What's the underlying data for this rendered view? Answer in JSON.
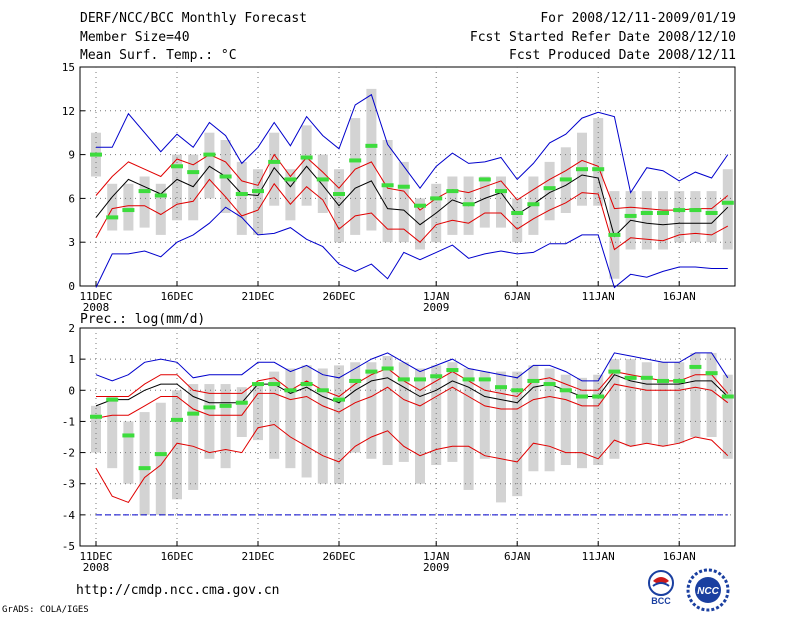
{
  "header": {
    "title": "DERF/NCC/BCC Monthly Forecast",
    "member_size": "Member Size=40",
    "variable": "Mean Surf. Temp.: °C",
    "period": "For 2008/12/11-2009/01/19",
    "fcst_started": "Fcst Started Refer Date 2008/12/10",
    "fcst_produced": "Fcst Produced Date 2008/12/11"
  },
  "footer": {
    "url": "http://cmdp.ncc.cma.gov.cn",
    "credit": "GrADS: COLA/IGES",
    "logo_left_text": "BCC",
    "logo_right_text": "NCC"
  },
  "colors": {
    "box": "#d3d3d3",
    "ensemble_mean": "#000000",
    "spread": "#e00000",
    "extremes": "#0000cc",
    "marker": "#3ddc3d"
  },
  "chart_data": [
    {
      "type": "line",
      "title": "",
      "ylabel": "",
      "ylim": [
        0,
        15
      ],
      "yticks": [
        0,
        3,
        6,
        9,
        12,
        15
      ],
      "xticks": [
        {
          "day": 0,
          "label": "11DEC",
          "sub": "2008"
        },
        {
          "day": 5,
          "label": "16DEC",
          "sub": ""
        },
        {
          "day": 10,
          "label": "21DEC",
          "sub": ""
        },
        {
          "day": 15,
          "label": "26DEC",
          "sub": ""
        },
        {
          "day": 21,
          "label": "1JAN",
          "sub": "2009"
        },
        {
          "day": 26,
          "label": "6JAN",
          "sub": ""
        },
        {
          "day": 31,
          "label": "11JAN",
          "sub": ""
        },
        {
          "day": 36,
          "label": "16JAN",
          "sub": ""
        }
      ],
      "grid": true,
      "days": 40,
      "series": [
        {
          "name": "max",
          "color": "#0000cc",
          "values": [
            9.5,
            9.5,
            11.8,
            10.5,
            9.2,
            10.4,
            9.5,
            11.2,
            10.3,
            8.4,
            9.5,
            11.2,
            9.6,
            11.6,
            10.3,
            9.4,
            12.4,
            13.1,
            9.7,
            8.2,
            6.7,
            8.2,
            9.1,
            8.4,
            8.5,
            8.8,
            7.3,
            8.4,
            9.8,
            10.4,
            11.5,
            11.9,
            11.6,
            6.4,
            8.1,
            7.9,
            7.2,
            7.8,
            7.4,
            9.0
          ]
        },
        {
          "name": "p75",
          "color": "#e00000",
          "values": [
            6.2,
            7.5,
            8.5,
            8.0,
            7.5,
            8.7,
            8.3,
            9.0,
            8.5,
            7.2,
            6.9,
            9.0,
            7.5,
            8.8,
            7.8,
            6.7,
            8.0,
            8.5,
            6.7,
            6.5,
            5.2,
            6.0,
            6.6,
            6.4,
            6.8,
            7.2,
            5.9,
            6.6,
            7.3,
            7.9,
            8.6,
            8.2,
            5.3,
            5.4,
            5.3,
            5.2,
            5.2,
            5.3,
            5.3,
            6.2
          ]
        },
        {
          "name": "mean",
          "color": "#000000",
          "values": [
            4.7,
            6.1,
            7.3,
            6.8,
            6.3,
            7.3,
            6.8,
            8.2,
            7.5,
            6.3,
            6.2,
            8.1,
            6.8,
            8.2,
            6.9,
            5.5,
            6.7,
            7.2,
            5.3,
            5.2,
            4.2,
            5.0,
            5.9,
            5.5,
            6.0,
            6.4,
            4.9,
            5.6,
            6.4,
            6.9,
            7.6,
            7.4,
            3.4,
            4.5,
            4.3,
            4.2,
            4.3,
            4.3,
            4.3,
            5.4
          ]
        },
        {
          "name": "p25",
          "color": "#e00000",
          "values": [
            3.3,
            5.3,
            5.5,
            5.5,
            4.9,
            5.6,
            5.8,
            7.3,
            6.1,
            4.8,
            5.2,
            7.0,
            5.6,
            6.8,
            5.9,
            3.9,
            4.8,
            5.0,
            3.9,
            3.9,
            3.0,
            4.2,
            4.5,
            4.3,
            5.0,
            5.0,
            3.9,
            4.6,
            5.2,
            5.7,
            6.4,
            6.3,
            2.5,
            3.3,
            3.2,
            3.1,
            3.5,
            3.6,
            3.5,
            4.1
          ]
        },
        {
          "name": "min",
          "color": "#0000cc",
          "values": [
            -0.1,
            2.2,
            2.2,
            2.4,
            2.0,
            3.0,
            3.5,
            4.3,
            5.4,
            4.7,
            3.5,
            3.6,
            4.0,
            3.2,
            2.7,
            1.5,
            1.0,
            1.5,
            0.5,
            2.3,
            1.8,
            2.3,
            2.8,
            1.9,
            2.2,
            2.4,
            2.2,
            2.3,
            2.9,
            2.9,
            3.5,
            3.5,
            -0.1,
            0.8,
            0.6,
            1.0,
            1.3,
            1.3,
            1.2,
            1.2
          ]
        }
      ],
      "boxes": {
        "low": [
          7.5,
          3.8,
          3.8,
          4.0,
          3.5,
          4.5,
          4.5,
          6.0,
          5.0,
          3.5,
          3.5,
          5.5,
          4.5,
          5.5,
          5.0,
          3.0,
          3.5,
          3.8,
          3.0,
          3.0,
          2.5,
          3.0,
          3.5,
          3.5,
          4.0,
          4.0,
          3.0,
          3.5,
          4.5,
          5.0,
          5.5,
          5.5,
          0.5,
          2.5,
          2.5,
          2.5,
          3.0,
          3.0,
          3.0,
          2.5
        ],
        "high": [
          10.5,
          7.0,
          7.0,
          7.5,
          7.0,
          9.0,
          9.0,
          10.5,
          10.0,
          8.5,
          8.0,
          10.5,
          8.0,
          11.0,
          9.0,
          8.0,
          11.5,
          13.5,
          10.0,
          8.5,
          6.0,
          7.0,
          7.5,
          7.5,
          7.5,
          7.5,
          6.0,
          7.5,
          8.5,
          9.5,
          10.5,
          11.5,
          6.5,
          6.5,
          6.5,
          6.5,
          6.5,
          6.5,
          6.5,
          8.0
        ]
      },
      "markers": [
        9.0,
        4.7,
        5.2,
        6.5,
        6.2,
        8.2,
        7.8,
        9.0,
        7.5,
        6.3,
        6.5,
        8.5,
        7.3,
        8.8,
        7.3,
        6.3,
        8.6,
        9.6,
        6.9,
        6.8,
        5.5,
        6.0,
        6.5,
        5.6,
        7.3,
        6.5,
        5.0,
        5.6,
        6.7,
        7.3,
        8.0,
        8.0,
        3.5,
        4.8,
        5.0,
        5.0,
        5.2,
        5.2,
        5.0,
        5.7
      ]
    },
    {
      "type": "line",
      "title": "Prec.: log(mm/d)",
      "ylabel": "",
      "ylim": [
        -5,
        2
      ],
      "yticks": [
        -5,
        -4,
        -3,
        -2,
        -1,
        0,
        1,
        2
      ],
      "xticks": [
        {
          "day": 0,
          "label": "11DEC",
          "sub": "2008"
        },
        {
          "day": 5,
          "label": "16DEC",
          "sub": ""
        },
        {
          "day": 10,
          "label": "21DEC",
          "sub": ""
        },
        {
          "day": 15,
          "label": "26DEC",
          "sub": ""
        },
        {
          "day": 21,
          "label": "1JAN",
          "sub": "2009"
        },
        {
          "day": 26,
          "label": "6JAN",
          "sub": ""
        },
        {
          "day": 31,
          "label": "11JAN",
          "sub": ""
        },
        {
          "day": 36,
          "label": "16JAN",
          "sub": ""
        }
      ],
      "grid": true,
      "days": 40,
      "series": [
        {
          "name": "max",
          "color": "#0000cc",
          "values": [
            0.5,
            0.3,
            0.5,
            0.9,
            1.0,
            0.9,
            0.4,
            0.5,
            0.5,
            0.5,
            0.9,
            0.9,
            0.6,
            0.8,
            0.5,
            0.4,
            0.7,
            1.0,
            1.2,
            0.9,
            0.6,
            0.8,
            1.0,
            0.7,
            0.6,
            0.5,
            0.4,
            0.8,
            0.8,
            0.6,
            0.3,
            0.3,
            1.2,
            1.1,
            1.0,
            0.9,
            0.9,
            1.2,
            1.2,
            0.4
          ]
        },
        {
          "name": "p75",
          "color": "#e00000",
          "values": [
            -0.2,
            -0.2,
            -0.2,
            0.2,
            0.5,
            0.5,
            0.0,
            -0.1,
            -0.1,
            -0.1,
            0.3,
            0.4,
            0.0,
            0.3,
            0.0,
            -0.2,
            0.2,
            0.5,
            0.7,
            0.3,
            0.0,
            0.3,
            0.6,
            0.3,
            0.0,
            -0.1,
            -0.2,
            0.3,
            0.4,
            0.2,
            0.0,
            0.0,
            0.6,
            0.5,
            0.4,
            0.3,
            0.3,
            0.5,
            0.5,
            -0.1
          ]
        },
        {
          "name": "mean",
          "color": "#000000",
          "values": [
            -0.5,
            -0.3,
            -0.3,
            0.0,
            0.2,
            0.2,
            -0.2,
            -0.4,
            -0.4,
            -0.4,
            0.2,
            0.2,
            -0.1,
            0.1,
            -0.2,
            -0.4,
            0.0,
            0.3,
            0.4,
            0.1,
            -0.2,
            0.0,
            0.3,
            0.1,
            -0.2,
            -0.3,
            -0.4,
            0.1,
            0.2,
            0.0,
            -0.2,
            -0.2,
            0.5,
            0.3,
            0.2,
            0.2,
            0.2,
            0.3,
            0.3,
            -0.2
          ]
        },
        {
          "name": "p25",
          "color": "#e00000",
          "values": [
            -0.9,
            -0.8,
            -0.8,
            -0.5,
            -0.2,
            -0.2,
            -0.6,
            -0.8,
            -0.8,
            -0.8,
            -0.1,
            -0.1,
            -0.3,
            -0.2,
            -0.5,
            -0.7,
            -0.4,
            -0.2,
            0.1,
            -0.3,
            -0.5,
            -0.2,
            0.1,
            -0.2,
            -0.5,
            -0.6,
            -0.6,
            -0.3,
            -0.2,
            -0.3,
            -0.5,
            -0.5,
            0.2,
            0.1,
            0.0,
            0.0,
            0.0,
            0.1,
            0.0,
            -0.4
          ]
        },
        {
          "name": "min",
          "color": "#e00000",
          "values": [
            -2.5,
            -3.4,
            -3.6,
            -2.8,
            -2.4,
            -1.7,
            -1.8,
            -2.0,
            -1.9,
            -2.0,
            -1.2,
            -1.1,
            -1.5,
            -1.8,
            -2.1,
            -2.3,
            -1.8,
            -1.5,
            -1.3,
            -1.8,
            -2.1,
            -1.9,
            -1.8,
            -1.8,
            -2.1,
            -2.2,
            -2.3,
            -1.7,
            -1.8,
            -2.0,
            -2.0,
            -2.2,
            -1.6,
            -1.8,
            -1.7,
            -1.8,
            -1.7,
            -1.5,
            -1.6,
            -2.1
          ]
        },
        {
          "name": "floor",
          "color": "#0000cc",
          "values": [
            -4,
            -4,
            -4,
            -4,
            -4,
            -4,
            -4,
            -4,
            -4,
            -4,
            -4,
            -4,
            -4,
            -4,
            -4,
            -4,
            -4,
            -4,
            -4,
            -4,
            -4,
            -4,
            -4,
            -4,
            -4,
            -4,
            -4,
            -4,
            -4,
            -4,
            -4,
            -4,
            -4,
            -4,
            -4,
            -4,
            -4,
            -4,
            -4,
            -4
          ]
        }
      ],
      "boxes": {
        "low": [
          -2.0,
          -2.5,
          -3.0,
          -4.0,
          -4.0,
          -3.5,
          -3.2,
          -2.2,
          -2.5,
          -1.5,
          -1.6,
          -2.2,
          -2.5,
          -2.8,
          -3.0,
          -3.0,
          -2.0,
          -2.2,
          -2.4,
          -2.3,
          -3.0,
          -2.4,
          -2.3,
          -3.2,
          -2.2,
          -3.6,
          -3.4,
          -2.6,
          -2.6,
          -2.4,
          -2.5,
          -2.4,
          -2.2,
          -1.8,
          -1.7,
          -1.8,
          -1.7,
          -1.5,
          -1.5,
          -2.2
        ],
        "high": [
          -0.5,
          -0.2,
          -1.0,
          -0.7,
          -0.4,
          0.0,
          0.2,
          0.2,
          0.2,
          0.1,
          0.2,
          0.6,
          0.7,
          0.8,
          0.7,
          0.8,
          0.9,
          0.9,
          1.1,
          0.9,
          0.7,
          0.8,
          0.9,
          0.7,
          0.6,
          0.6,
          0.6,
          0.8,
          0.7,
          0.5,
          0.4,
          0.5,
          1.0,
          1.0,
          0.9,
          0.9,
          0.9,
          1.2,
          1.2,
          0.5
        ]
      },
      "markers": [
        -0.85,
        -0.3,
        -1.45,
        -2.5,
        -2.05,
        -0.95,
        -0.75,
        -0.55,
        -0.5,
        -0.4,
        0.2,
        0.2,
        0.0,
        0.2,
        0.0,
        -0.3,
        0.3,
        0.6,
        0.7,
        0.35,
        0.35,
        0.45,
        0.65,
        0.35,
        0.35,
        0.1,
        0.0,
        0.3,
        0.2,
        0.0,
        -0.2,
        -0.2,
        0.6,
        0.4,
        0.4,
        0.3,
        0.3,
        0.75,
        0.55,
        -0.2
      ]
    }
  ]
}
